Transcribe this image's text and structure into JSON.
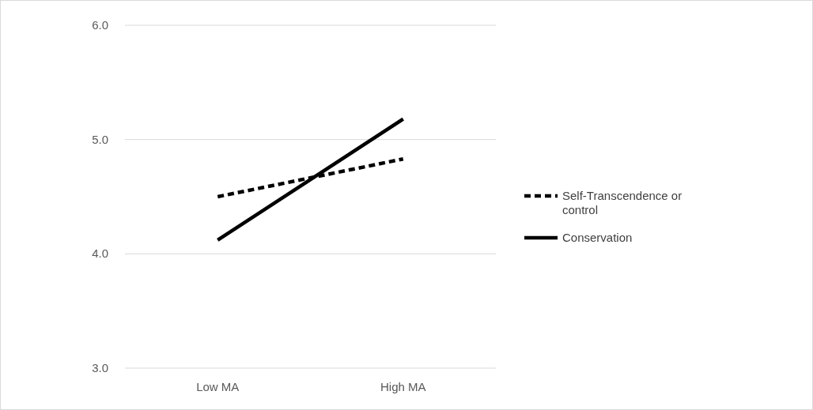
{
  "chart_data": {
    "type": "line",
    "categories": [
      "Low MA",
      "High MA"
    ],
    "series": [
      {
        "name": "Self-Transcendence or control",
        "color": "#000000",
        "values": [
          4.5,
          4.83
        ],
        "line_style": "dashed"
      },
      {
        "name": "Conservation",
        "color": "#000000",
        "values": [
          4.12,
          5.18
        ],
        "line_style": "solid"
      }
    ],
    "ylim": [
      3.0,
      6.0
    ],
    "yticks": [
      {
        "value": 3,
        "label": "3.0"
      },
      {
        "value": 4,
        "label": "4.0"
      },
      {
        "value": 5,
        "label": "5.0"
      },
      {
        "value": 6,
        "label": "6.0"
      }
    ],
    "grid": "y",
    "legend": "right",
    "marker": "none"
  }
}
